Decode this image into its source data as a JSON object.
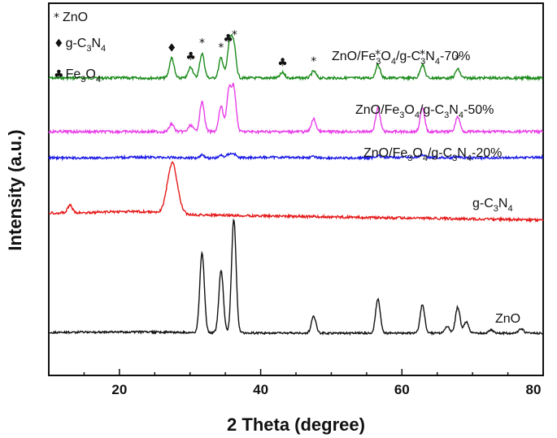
{
  "chart_data": {
    "type": "line",
    "xlabel": "2 Theta (degree)",
    "ylabel": "Intensity (a.u.)",
    "xlim": [
      10,
      80
    ],
    "x_ticks": [
      20,
      40,
      60,
      80
    ],
    "grid": false,
    "legend": {
      "placement": "top-left",
      "entries": [
        {
          "symbol": "*",
          "label": "ZnO"
        },
        {
          "symbol": "♦",
          "label": "g-C3N4"
        },
        {
          "symbol": "♣",
          "label": "Fe3O4"
        }
      ]
    },
    "series": [
      {
        "name": "ZnO/Fe3O4/g-C3N4-70%",
        "color": "#1a8a1a",
        "peaks": [
          [
            27.4,
            0.45
          ],
          [
            30.1,
            0.25
          ],
          [
            31.7,
            0.55
          ],
          [
            34.4,
            0.45
          ],
          [
            35.6,
            0.75
          ],
          [
            36.2,
            0.7
          ],
          [
            43.1,
            0.12
          ],
          [
            47.5,
            0.15
          ],
          [
            56.6,
            0.3
          ],
          [
            62.9,
            0.3
          ],
          [
            67.9,
            0.2
          ]
        ]
      },
      {
        "name": "ZnO/Fe3O4/g-C3N4-50%",
        "color": "#e83ee8",
        "peaks": [
          [
            27.4,
            0.18
          ],
          [
            30.1,
            0.15
          ],
          [
            31.7,
            0.7
          ],
          [
            34.4,
            0.6
          ],
          [
            35.5,
            0.95
          ],
          [
            36.2,
            1.0
          ],
          [
            47.5,
            0.3
          ],
          [
            56.6,
            0.55
          ],
          [
            62.9,
            0.55
          ],
          [
            67.9,
            0.35
          ]
        ]
      },
      {
        "name": "ZnO/Fe3O4/g-C3N4-20%",
        "color": "#1a1ae6",
        "peaks": [
          [
            31.7,
            0.25
          ],
          [
            34.4,
            0.2
          ],
          [
            35.5,
            0.28
          ],
          [
            36.2,
            0.3
          ],
          [
            47.5,
            0.08
          ],
          [
            56.6,
            0.15
          ],
          [
            62.9,
            0.15
          ],
          [
            67.9,
            0.1
          ]
        ]
      },
      {
        "name": "g-C3N4",
        "color": "#e61a1a",
        "peaks": [
          [
            13.0,
            0.15
          ],
          [
            27.5,
            1.0
          ]
        ]
      },
      {
        "name": "ZnO",
        "color": "#111111",
        "peaks": [
          [
            31.7,
            0.7
          ],
          [
            34.4,
            0.55
          ],
          [
            36.2,
            1.0
          ],
          [
            47.5,
            0.15
          ],
          [
            56.6,
            0.3
          ],
          [
            62.9,
            0.25
          ],
          [
            66.4,
            0.06
          ],
          [
            67.9,
            0.23
          ],
          [
            69.1,
            0.1
          ],
          [
            72.6,
            0.03
          ],
          [
            76.9,
            0.04
          ]
        ]
      }
    ],
    "annotations": [
      {
        "symbol": "♦",
        "x": 27.4,
        "series": "ZnO/Fe3O4/g-C3N4-70%"
      },
      {
        "symbol": "♣",
        "x": 30.1,
        "series": "ZnO/Fe3O4/g-C3N4-70%"
      },
      {
        "symbol": "*",
        "x": 31.7,
        "series": "ZnO/Fe3O4/g-C3N4-70%"
      },
      {
        "symbol": "*",
        "x": 34.4,
        "series": "ZnO/Fe3O4/g-C3N4-70%"
      },
      {
        "symbol": "♣",
        "x": 35.4,
        "series": "ZnO/Fe3O4/g-C3N4-70%"
      },
      {
        "symbol": "*",
        "x": 36.3,
        "series": "ZnO/Fe3O4/g-C3N4-70%"
      },
      {
        "symbol": "♣",
        "x": 43.1,
        "series": "ZnO/Fe3O4/g-C3N4-70%"
      },
      {
        "symbol": "*",
        "x": 47.5,
        "series": "ZnO/Fe3O4/g-C3N4-70%"
      },
      {
        "symbol": "*",
        "x": 56.6,
        "series": "ZnO/Fe3O4/g-C3N4-70%"
      },
      {
        "symbol": "*",
        "x": 62.9,
        "series": "ZnO/Fe3O4/g-C3N4-70%"
      },
      {
        "symbol": "*",
        "x": 67.9,
        "series": "ZnO/Fe3O4/g-C3N4-70%"
      }
    ]
  }
}
